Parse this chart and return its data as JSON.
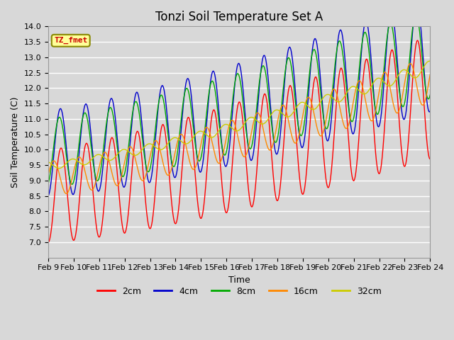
{
  "title": "Tonzi Soil Temperature Set A",
  "xlabel": "Time",
  "ylabel": "Soil Temperature (C)",
  "ylim": [
    6.5,
    14.0
  ],
  "yticks": [
    7.0,
    7.5,
    8.0,
    8.5,
    9.0,
    9.5,
    10.0,
    10.5,
    11.0,
    11.5,
    12.0,
    12.5,
    13.0,
    13.5,
    14.0
  ],
  "bg_color": "#d8d8d8",
  "plot_bg_color": "#d8d8d8",
  "grid_color": "#ffffff",
  "legend_labels": [
    "2cm",
    "4cm",
    "8cm",
    "16cm",
    "32cm"
  ],
  "line_colors": [
    "#ff0000",
    "#0000cc",
    "#00aa00",
    "#ff8800",
    "#cccc00"
  ],
  "annotation_text": "TZ_fmet",
  "annotation_color": "#cc0000",
  "annotation_bg": "#ffff99",
  "annotation_border": "#888800",
  "xtick_labels": [
    "Feb 9",
    "Feb 10",
    "Feb 11",
    "Feb 12",
    "Feb 13",
    "Feb 14",
    "Feb 15",
    "Feb 16",
    "Feb 17",
    "Feb 18",
    "Feb 19",
    "Feb 20",
    "Feb 21",
    "Feb 22",
    "Feb 23",
    "Feb 24"
  ],
  "title_fontsize": 12,
  "axis_fontsize": 9,
  "tick_fontsize": 8
}
